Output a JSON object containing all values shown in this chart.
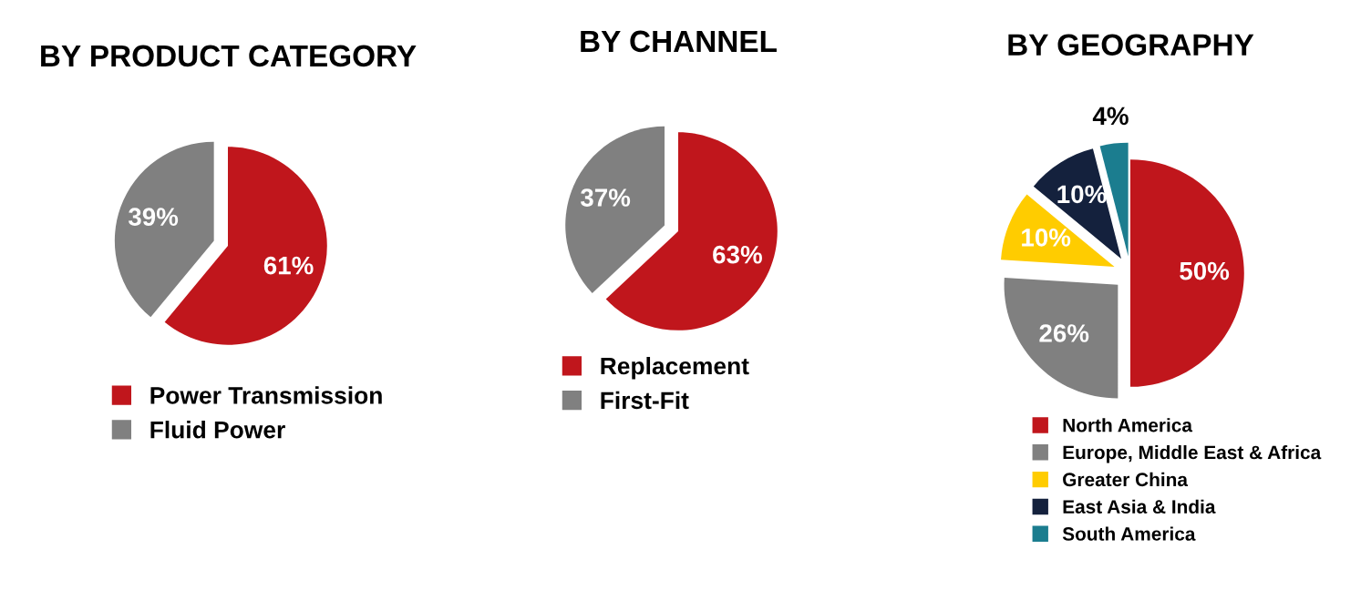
{
  "chart_data": [
    {
      "type": "pie",
      "title": "BY PRODUCT CATEGORY",
      "categories": [
        "Power Transmission",
        "Fluid Power"
      ],
      "values": [
        61,
        39
      ],
      "value_labels": [
        "61%",
        "39%"
      ],
      "colors": [
        "#c0161c",
        "#808080"
      ],
      "legend": "bottom"
    },
    {
      "type": "pie",
      "title": "BY CHANNEL",
      "categories": [
        "Replacement",
        "First-Fit"
      ],
      "values": [
        63,
        37
      ],
      "value_labels": [
        "63%",
        "37%"
      ],
      "colors": [
        "#c0161c",
        "#808080"
      ],
      "legend": "bottom"
    },
    {
      "type": "pie",
      "title": "BY GEOGRAPHY",
      "categories": [
        "North America",
        "Europe, Middle East & Africa",
        "Greater China",
        "East Asia & India",
        "South America"
      ],
      "values": [
        50,
        26,
        10,
        10,
        4
      ],
      "value_labels": [
        "50%",
        "26%",
        "10%",
        "10%",
        "4%"
      ],
      "colors": [
        "#c0161c",
        "#808080",
        "#ffcc00",
        "#14213d",
        "#1b7d8f"
      ],
      "legend": "bottom"
    }
  ]
}
